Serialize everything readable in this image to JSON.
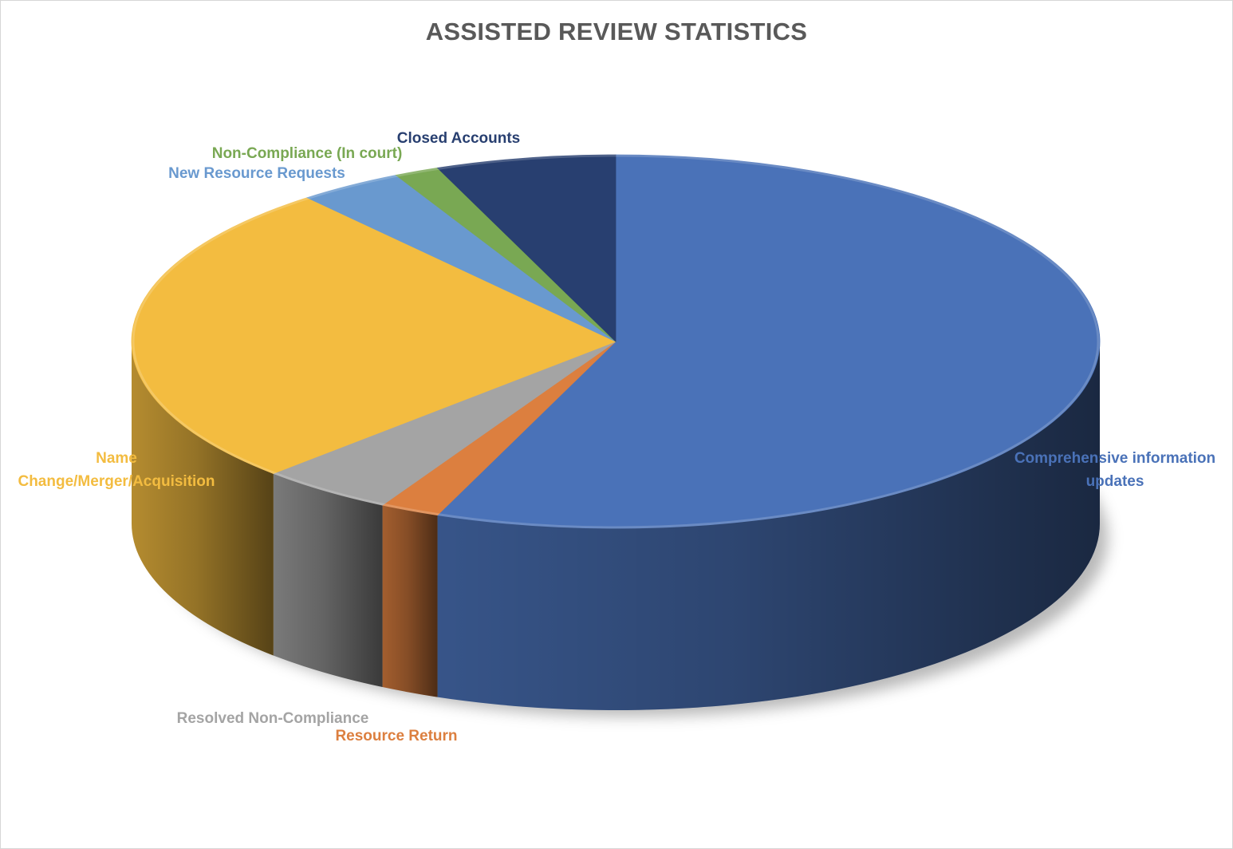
{
  "chart_data": {
    "type": "pie",
    "style": "3d",
    "title": "ASSISTED REVIEW STATISTICS",
    "legend": "none",
    "slices": [
      {
        "label": "Comprehensive information updates",
        "label_lines": [
          "Comprehensive information",
          "updates"
        ],
        "value": 56.0,
        "color": "#4a72b8"
      },
      {
        "label": "Resource Return",
        "label_lines": [
          "Resource Return"
        ],
        "value": 2.0,
        "color": "#dc7f3f"
      },
      {
        "label": "Resolved Non-Compliance",
        "label_lines": [
          "Resolved Non-Compliance"
        ],
        "value": 4.5,
        "color": "#a4a4a4"
      },
      {
        "label": "Name Change/Merger/Acquisition",
        "label_lines": [
          "Name",
          "Change/Merger/Acquisition"
        ],
        "value": 26.5,
        "color": "#f3bc40"
      },
      {
        "label": "New Resource Requests",
        "label_lines": [
          "New Resource Requests"
        ],
        "value": 3.5,
        "color": "#6999cf"
      },
      {
        "label": "Non-Compliance (In court)",
        "label_lines": [
          "Non-Compliance (In court)"
        ],
        "value": 1.5,
        "color": "#79a853"
      },
      {
        "label": "Closed Accounts",
        "label_lines": [
          "Closed Accounts"
        ],
        "value": 6.0,
        "color": "#283f70"
      }
    ]
  }
}
